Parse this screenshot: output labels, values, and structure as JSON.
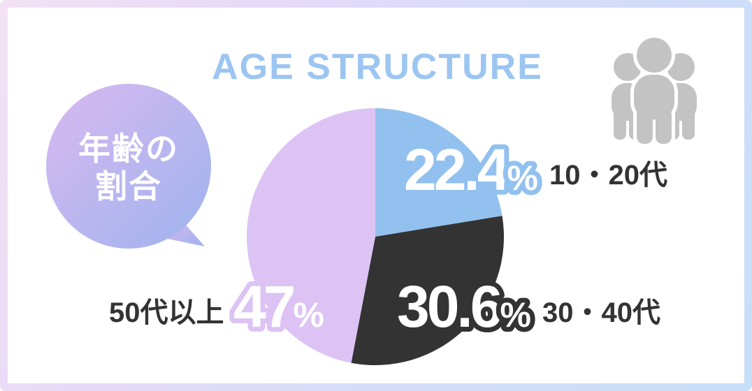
{
  "title": "AGE STRUCTURE",
  "bubble": {
    "line1": "年齢の",
    "line2": "割合"
  },
  "ui": {
    "percent_sign": "%"
  },
  "icons": {
    "people_group": "people-group-icon"
  },
  "colors": {
    "title_blue": "#9CC5F1",
    "slice_blue": "#92C1EF",
    "slice_dark": "#333333",
    "slice_purple": "#DCC3F4",
    "label_text": "#333333",
    "icon_gray": "#C3C3C3",
    "frame_gradient_start": "#F3E2F4",
    "frame_gradient_end": "#C7DEF8",
    "bubble_gradient_start": "#D9B9F0",
    "bubble_gradient_end": "#9EB3EE"
  },
  "chart_data": {
    "type": "pie",
    "title": "AGE STRUCTURE",
    "subtitle": "年齢の割合",
    "start_angle_deg": 0,
    "direction": "clockwise",
    "legend_position": "labels-beside-slices",
    "slices": [
      {
        "label": "10・20代",
        "value": 22.4,
        "display": "22.4",
        "color": "#92C1EF"
      },
      {
        "label": "30・40代",
        "value": 30.6,
        "display": "30.6",
        "color": "#333333"
      },
      {
        "label": "50代以上",
        "value": 47,
        "display": "47",
        "color": "#DCC3F4"
      }
    ]
  }
}
